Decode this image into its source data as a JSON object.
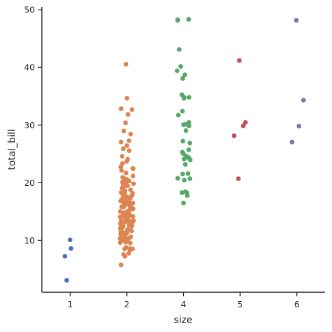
{
  "chart_data": {
    "type": "scatter",
    "title": "",
    "xlabel": "size",
    "ylabel": "total_bill",
    "categories": [
      "1",
      "2",
      "4",
      "5",
      "6"
    ],
    "ylim": [
      1,
      50.5
    ],
    "yticks": [
      10,
      20,
      30,
      40,
      50
    ],
    "grid": false,
    "legend": false,
    "colors": [
      "#4c72b0",
      "#dd8452",
      "#55a868",
      "#c44e52",
      "#8172b3"
    ],
    "series": [
      {
        "category": "1",
        "values": [
          10.07,
          8.58,
          7.25,
          3.07
        ]
      },
      {
        "category": "2",
        "values": [
          40.55,
          34.65,
          32.83,
          32.68,
          31.85,
          30.4,
          28.97,
          28.44,
          27.28,
          27.05,
          26.41,
          25.89,
          25.56,
          24.59,
          24.06,
          23.68,
          23.33,
          22.75,
          22.49,
          22.42,
          22.12,
          21.7,
          21.16,
          20.92,
          20.65,
          20.49,
          20.29,
          20.23,
          20.08,
          19.82,
          19.77,
          19.65,
          19.49,
          19.44,
          19.08,
          18.78,
          18.64,
          18.35,
          18.29,
          18.15,
          17.92,
          17.81,
          17.59,
          17.51,
          17.47,
          17.46,
          17.31,
          17.29,
          17.07,
          16.99,
          16.97,
          16.93,
          16.82,
          16.66,
          16.58,
          16.49,
          16.47,
          16.45,
          16.43,
          16.4,
          16.32,
          16.29,
          16.27,
          16.21,
          16.04,
          16.0,
          15.98,
          15.81,
          15.77,
          15.69,
          15.53,
          15.48,
          15.42,
          15.38,
          15.36,
          15.06,
          15.04,
          15.01,
          14.83,
          14.78,
          14.73,
          14.52,
          14.48,
          14.31,
          14.26,
          14.15,
          14.07,
          14.0,
          13.94,
          13.81,
          13.51,
          13.42,
          13.39,
          13.37,
          13.28,
          13.27,
          13.16,
          13.13,
          13.03,
          13.0,
          12.9,
          12.74,
          12.69,
          12.66,
          12.6,
          12.54,
          12.48,
          12.43,
          12.26,
          12.16,
          12.03,
          12.02,
          11.87,
          11.69,
          11.61,
          11.59,
          11.38,
          11.35,
          11.24,
          11.17,
          11.02,
          10.77,
          10.65,
          10.63,
          10.59,
          10.51,
          10.34,
          10.33,
          10.29,
          10.27,
          10.07,
          9.94,
          9.78,
          9.68,
          9.6,
          9.55,
          8.77,
          8.58,
          8.52,
          8.51,
          8.35,
          7.74,
          7.56,
          7.25,
          5.75
        ]
      },
      {
        "category": "4",
        "values": [
          48.33,
          48.27,
          48.17,
          43.11,
          40.17,
          39.42,
          38.73,
          38.07,
          35.26,
          34.83,
          34.81,
          34.63,
          32.4,
          31.71,
          30.46,
          30.14,
          30.06,
          29.85,
          29.03,
          27.2,
          26.88,
          25.71,
          25.29,
          25.0,
          24.55,
          24.52,
          24.27,
          24.08,
          23.95,
          23.17,
          21.58,
          21.5,
          20.76,
          20.69,
          20.45,
          18.43,
          18.29,
          18.24,
          17.78,
          16.47
        ]
      },
      {
        "category": "5",
        "values": [
          41.19,
          30.46,
          29.85,
          28.15,
          20.69
        ]
      },
      {
        "category": "6",
        "values": [
          48.17,
          34.3,
          29.8,
          27.05
        ]
      }
    ]
  }
}
